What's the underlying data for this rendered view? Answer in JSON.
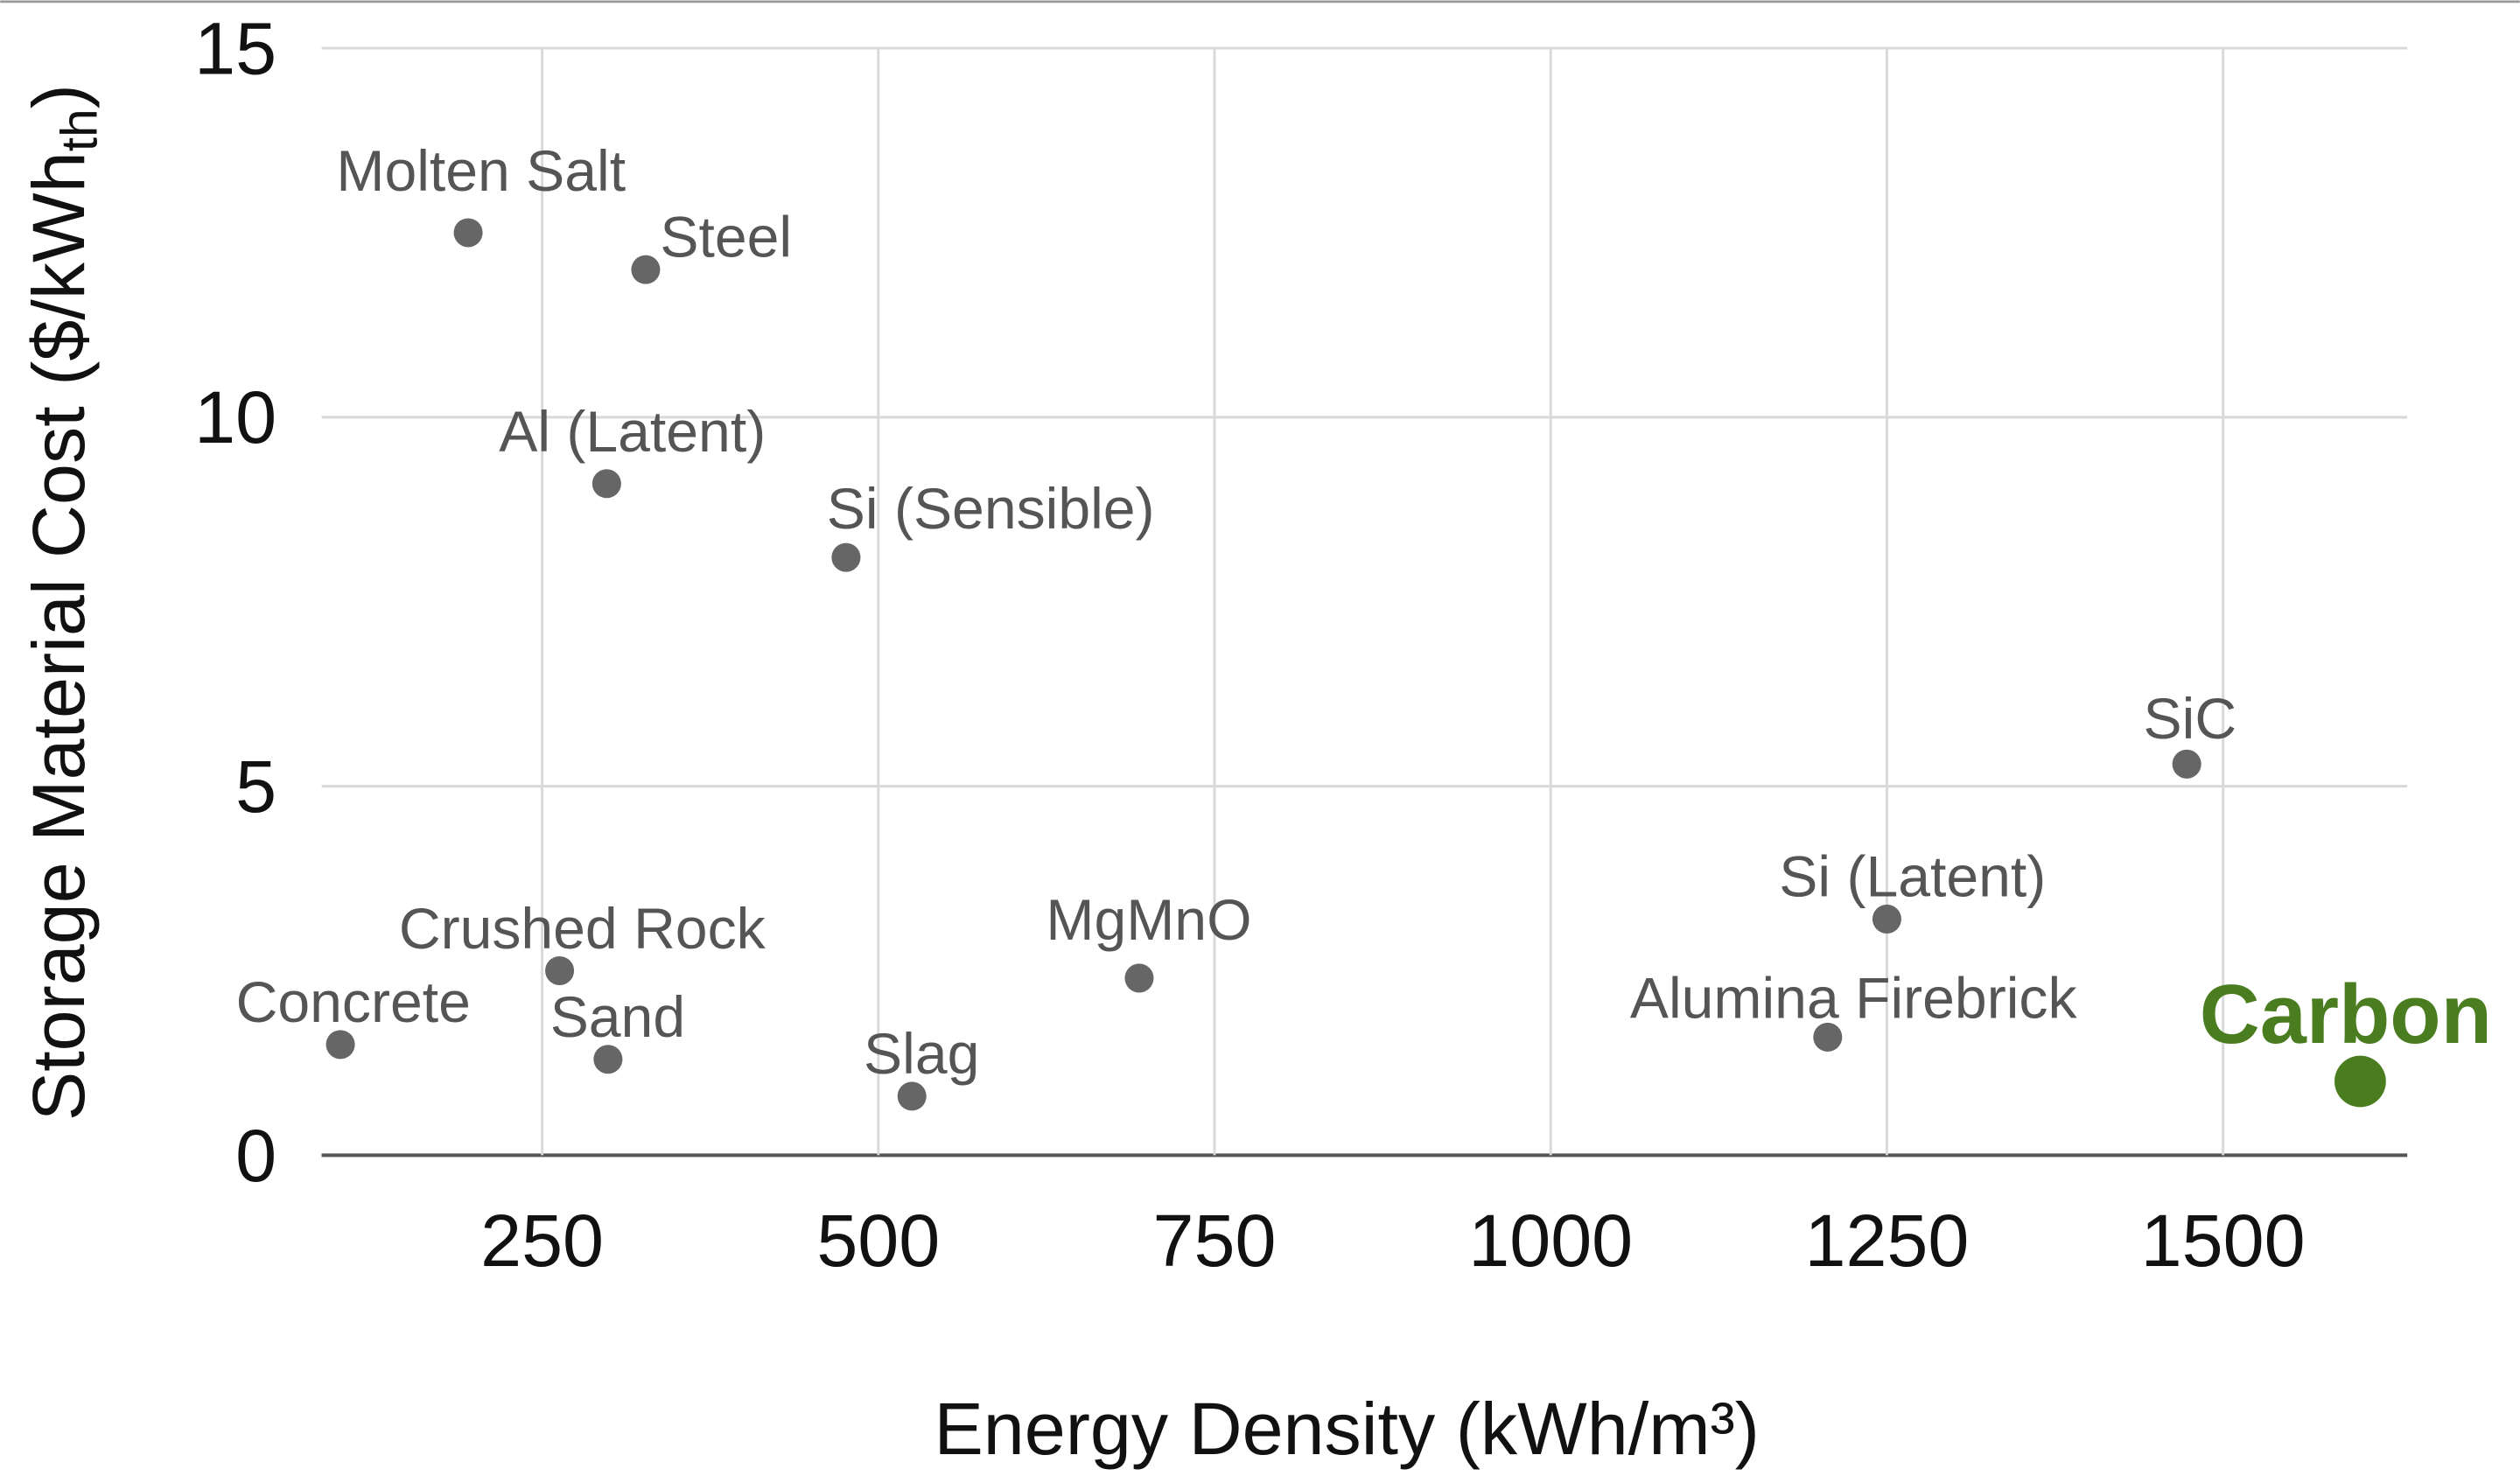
{
  "chart_data": {
    "type": "scatter",
    "title": "",
    "xlabel": "Energy Density (kWh/m³)",
    "ylabel_main": "Storage Material Cost ($/kWh",
    "ylabel_sub": "th",
    "ylabel_close": ")",
    "xlim": [
      86,
      1637
    ],
    "ylim": [
      0,
      15
    ],
    "xticks": [
      "250",
      "500",
      "750",
      "1000",
      "1250",
      "1500"
    ],
    "xtick_values": [
      250,
      500,
      750,
      1000,
      1250,
      1500
    ],
    "yticks": [
      "0",
      "5",
      "10",
      "15"
    ],
    "ytick_values": [
      0,
      5,
      10,
      15
    ],
    "grid": true,
    "default_color": "#666666",
    "highlight_color": "#4a7d1f",
    "points": [
      {
        "label": "Molten Salt",
        "x": 195,
        "y": 12.5
      },
      {
        "label": "Steel",
        "x": 327,
        "y": 12.0
      },
      {
        "label": "Al (Latent)",
        "x": 298,
        "y": 9.1
      },
      {
        "label": "Si (Sensible)",
        "x": 476,
        "y": 8.1
      },
      {
        "label": "SiC",
        "x": 1473,
        "y": 5.3
      },
      {
        "label": "Si (Latent)",
        "x": 1250,
        "y": 3.2
      },
      {
        "label": "MgMnO",
        "x": 694,
        "y": 2.4
      },
      {
        "label": "Crushed Rock",
        "x": 263,
        "y": 2.5
      },
      {
        "label": "Concrete",
        "x": 100,
        "y": 1.5
      },
      {
        "label": "Sand",
        "x": 299,
        "y": 1.3
      },
      {
        "label": "Slag",
        "x": 525,
        "y": 0.8
      },
      {
        "label": "Alumina Firebrick",
        "x": 1206,
        "y": 1.6
      },
      {
        "label": "Carbon",
        "x": 1602,
        "y": 1.0,
        "highlight": true
      }
    ]
  }
}
